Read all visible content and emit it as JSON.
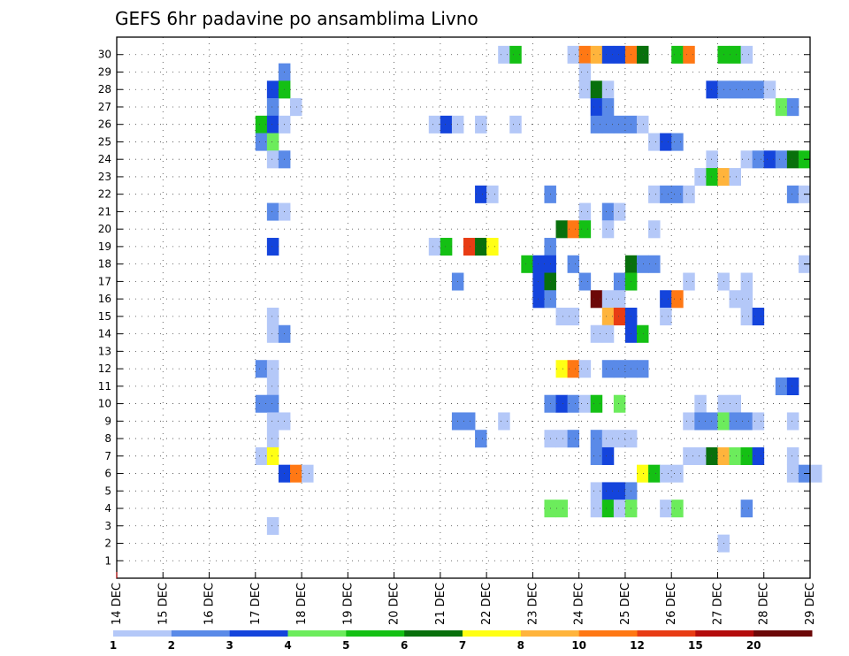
{
  "chart_data": {
    "type": "heatmap",
    "title": "GEFS 6hr padavine po ansamblima Livno",
    "xlabel": "",
    "ylabel": "",
    "x_tick_labels": [
      "14 DEC",
      "15 DEC",
      "16 DEC",
      "17 DEC",
      "18 DEC",
      "19 DEC",
      "20 DEC",
      "21 DEC",
      "22 DEC",
      "23 DEC",
      "24 DEC",
      "25 DEC",
      "26 DEC",
      "27 DEC",
      "28 DEC",
      "29 DEC"
    ],
    "y_tick_labels": [
      "1",
      "2",
      "3",
      "4",
      "5",
      "6",
      "7",
      "8",
      "9",
      "10",
      "11",
      "12",
      "13",
      "14",
      "15",
      "16",
      "17",
      "18",
      "19",
      "20",
      "21",
      "22",
      "23",
      "24",
      "25",
      "26",
      "27",
      "28",
      "29",
      "30"
    ],
    "grid": true,
    "legend_placement": "bottom",
    "legend": {
      "labels": [
        "1",
        "2",
        "3",
        "4",
        "5",
        "6",
        "7",
        "8",
        "10",
        "12",
        "15",
        "20"
      ],
      "colors": [
        "#b4c8f8",
        "#5a8ae8",
        "#1444dc",
        "#6cec5c",
        "#14c014",
        "#08700c",
        "#ffff14",
        "#ffb43c",
        "#ff7814",
        "#e83c14",
        "#b40c0c",
        "#6c0808"
      ]
    },
    "start_day": 14,
    "steps_per_day": 4,
    "levels": [
      1,
      2,
      3,
      4,
      5,
      6,
      7,
      8,
      10,
      12,
      15,
      20
    ],
    "cells": [
      [
        30,
        22.25,
        1
      ],
      [
        30,
        22.5,
        5
      ],
      [
        30,
        23.75,
        1
      ],
      [
        30,
        24,
        10
      ],
      [
        30,
        24.25,
        8
      ],
      [
        30,
        24.5,
        3
      ],
      [
        30,
        24.75,
        3
      ],
      [
        30,
        25,
        10
      ],
      [
        30,
        25.25,
        6
      ],
      [
        30,
        26,
        5
      ],
      [
        30,
        26.25,
        10
      ],
      [
        30,
        27,
        5
      ],
      [
        30,
        27.25,
        5
      ],
      [
        30,
        27.5,
        1
      ],
      [
        29,
        17.5,
        2
      ],
      [
        29,
        24,
        1
      ],
      [
        28,
        17.25,
        3
      ],
      [
        28,
        17.5,
        5
      ],
      [
        28,
        24,
        1
      ],
      [
        28,
        24.25,
        6
      ],
      [
        28,
        24.5,
        1
      ],
      [
        28,
        26.75,
        3
      ],
      [
        28,
        27,
        2
      ],
      [
        28,
        27.25,
        2
      ],
      [
        28,
        27.5,
        2
      ],
      [
        28,
        27.75,
        2
      ],
      [
        28,
        28,
        1
      ],
      [
        27,
        17.25,
        2
      ],
      [
        27,
        17.75,
        1
      ],
      [
        27,
        24.25,
        3
      ],
      [
        27,
        24.5,
        2
      ],
      [
        27,
        28.25,
        4
      ],
      [
        27,
        28.5,
        2
      ],
      [
        26,
        17,
        5
      ],
      [
        26,
        17.25,
        3
      ],
      [
        26,
        17.5,
        1
      ],
      [
        26,
        20.75,
        1
      ],
      [
        26,
        21,
        3
      ],
      [
        26,
        21.25,
        1
      ],
      [
        26,
        21.75,
        1
      ],
      [
        26,
        22.5,
        1
      ],
      [
        26,
        24.25,
        2
      ],
      [
        26,
        24.5,
        2
      ],
      [
        26,
        24.75,
        2
      ],
      [
        26,
        25,
        2
      ],
      [
        26,
        25.25,
        1
      ],
      [
        25,
        17,
        2
      ],
      [
        25,
        17.25,
        4
      ],
      [
        25,
        25.5,
        1
      ],
      [
        25,
        25.75,
        3
      ],
      [
        25,
        26,
        2
      ],
      [
        24,
        17.25,
        1
      ],
      [
        24,
        17.5,
        2
      ],
      [
        24,
        26.75,
        1
      ],
      [
        24,
        27.5,
        1
      ],
      [
        24,
        27.75,
        2
      ],
      [
        24,
        28,
        3
      ],
      [
        24,
        28.25,
        2
      ],
      [
        24,
        28.5,
        6
      ],
      [
        24,
        28.75,
        5
      ],
      [
        23,
        26.5,
        1
      ],
      [
        23,
        26.75,
        5
      ],
      [
        23,
        27,
        8
      ],
      [
        23,
        27.25,
        1
      ],
      [
        22,
        21.75,
        3
      ],
      [
        22,
        22,
        1
      ],
      [
        22,
        23.25,
        2
      ],
      [
        22,
        25.5,
        1
      ],
      [
        22,
        25.75,
        2
      ],
      [
        22,
        26,
        2
      ],
      [
        22,
        26.25,
        1
      ],
      [
        22,
        28.5,
        2
      ],
      [
        22,
        28.75,
        1
      ],
      [
        21,
        17.25,
        2
      ],
      [
        21,
        17.5,
        1
      ],
      [
        21,
        24,
        1
      ],
      [
        21,
        24.5,
        2
      ],
      [
        21,
        24.75,
        1
      ],
      [
        20,
        23.5,
        6
      ],
      [
        20,
        23.75,
        10
      ],
      [
        20,
        24,
        5
      ],
      [
        20,
        24.5,
        1
      ],
      [
        20,
        25.5,
        1
      ],
      [
        19,
        17.25,
        3
      ],
      [
        19,
        20.75,
        1
      ],
      [
        19,
        21,
        5
      ],
      [
        19,
        21.5,
        12
      ],
      [
        19,
        21.75,
        6
      ],
      [
        19,
        22,
        7
      ],
      [
        19,
        23.25,
        2
      ],
      [
        18,
        22.75,
        5
      ],
      [
        18,
        23,
        3
      ],
      [
        18,
        23.25,
        3
      ],
      [
        18,
        23.75,
        2
      ],
      [
        18,
        25,
        6
      ],
      [
        18,
        25.25,
        2
      ],
      [
        18,
        25.5,
        2
      ],
      [
        18,
        28.75,
        1
      ],
      [
        17,
        21.25,
        2
      ],
      [
        17,
        23,
        3
      ],
      [
        17,
        23.25,
        6
      ],
      [
        17,
        24,
        2
      ],
      [
        17,
        24.75,
        2
      ],
      [
        17,
        25,
        5
      ],
      [
        17,
        26.25,
        1
      ],
      [
        17,
        27,
        1
      ],
      [
        17,
        27.5,
        1
      ],
      [
        16,
        23,
        3
      ],
      [
        16,
        23.25,
        2
      ],
      [
        16,
        24.25,
        20
      ],
      [
        16,
        24.5,
        1
      ],
      [
        16,
        24.75,
        1
      ],
      [
        16,
        25.75,
        3
      ],
      [
        16,
        26,
        10
      ],
      [
        16,
        27.25,
        1
      ],
      [
        16,
        27.5,
        1
      ],
      [
        15,
        17.25,
        1
      ],
      [
        15,
        23.5,
        1
      ],
      [
        15,
        23.75,
        1
      ],
      [
        15,
        24.5,
        8
      ],
      [
        15,
        24.75,
        12
      ],
      [
        15,
        25,
        3
      ],
      [
        15,
        25.75,
        1
      ],
      [
        15,
        27.5,
        1
      ],
      [
        15,
        27.75,
        3
      ],
      [
        14,
        17.25,
        1
      ],
      [
        14,
        17.5,
        2
      ],
      [
        14,
        24.25,
        1
      ],
      [
        14,
        24.5,
        1
      ],
      [
        14,
        25,
        3
      ],
      [
        14,
        25.25,
        5
      ],
      [
        12,
        17,
        2
      ],
      [
        12,
        17.25,
        1
      ],
      [
        12,
        23.5,
        7
      ],
      [
        12,
        23.75,
        10
      ],
      [
        12,
        24,
        1
      ],
      [
        12,
        24.5,
        2
      ],
      [
        12,
        24.75,
        2
      ],
      [
        12,
        25,
        2
      ],
      [
        12,
        25.25,
        2
      ],
      [
        11,
        17.25,
        1
      ],
      [
        11,
        28.25,
        2
      ],
      [
        11,
        28.5,
        3
      ],
      [
        10,
        17,
        2
      ],
      [
        10,
        17.25,
        2
      ],
      [
        10,
        23.25,
        2
      ],
      [
        10,
        23.5,
        3
      ],
      [
        10,
        23.75,
        2
      ],
      [
        10,
        24,
        1
      ],
      [
        10,
        24.25,
        5
      ],
      [
        10,
        24.75,
        4
      ],
      [
        10,
        26.5,
        1
      ],
      [
        10,
        27,
        1
      ],
      [
        10,
        27.25,
        1
      ],
      [
        9,
        17.25,
        1
      ],
      [
        9,
        17.5,
        1
      ],
      [
        9,
        21.25,
        2
      ],
      [
        9,
        21.5,
        2
      ],
      [
        9,
        22.25,
        1
      ],
      [
        9,
        26.25,
        1
      ],
      [
        9,
        26.5,
        2
      ],
      [
        9,
        26.75,
        2
      ],
      [
        9,
        27,
        4
      ],
      [
        9,
        27.25,
        2
      ],
      [
        9,
        27.5,
        2
      ],
      [
        9,
        27.75,
        1
      ],
      [
        9,
        28.5,
        1
      ],
      [
        8,
        17.25,
        1
      ],
      [
        8,
        21.75,
        2
      ],
      [
        8,
        23.25,
        1
      ],
      [
        8,
        23.5,
        1
      ],
      [
        8,
        23.75,
        2
      ],
      [
        8,
        24.25,
        2
      ],
      [
        8,
        24.5,
        1
      ],
      [
        8,
        24.75,
        1
      ],
      [
        8,
        25,
        1
      ],
      [
        7,
        17,
        1
      ],
      [
        7,
        17.25,
        7
      ],
      [
        7,
        24.25,
        2
      ],
      [
        7,
        24.5,
        3
      ],
      [
        7,
        26.25,
        1
      ],
      [
        7,
        26.5,
        1
      ],
      [
        7,
        26.75,
        6
      ],
      [
        7,
        27,
        8
      ],
      [
        7,
        27.25,
        4
      ],
      [
        7,
        27.5,
        5
      ],
      [
        7,
        27.75,
        3
      ],
      [
        7,
        28.5,
        1
      ],
      [
        6,
        17.5,
        3
      ],
      [
        6,
        17.75,
        10
      ],
      [
        6,
        18,
        1
      ],
      [
        6,
        25.25,
        7
      ],
      [
        6,
        25.5,
        5
      ],
      [
        6,
        25.75,
        1
      ],
      [
        6,
        26,
        1
      ],
      [
        6,
        28.5,
        1
      ],
      [
        6,
        28.75,
        2
      ],
      [
        6,
        29,
        1
      ],
      [
        5,
        24.25,
        1
      ],
      [
        5,
        24.5,
        3
      ],
      [
        5,
        24.75,
        3
      ],
      [
        5,
        25,
        2
      ],
      [
        4,
        23.25,
        4
      ],
      [
        4,
        23.5,
        4
      ],
      [
        4,
        24.25,
        1
      ],
      [
        4,
        24.5,
        5
      ],
      [
        4,
        24.75,
        1
      ],
      [
        4,
        25,
        4
      ],
      [
        4,
        25.75,
        1
      ],
      [
        4,
        26,
        4
      ],
      [
        4,
        27.5,
        2
      ],
      [
        3,
        17.25,
        1
      ],
      [
        2,
        27,
        1
      ]
    ]
  }
}
